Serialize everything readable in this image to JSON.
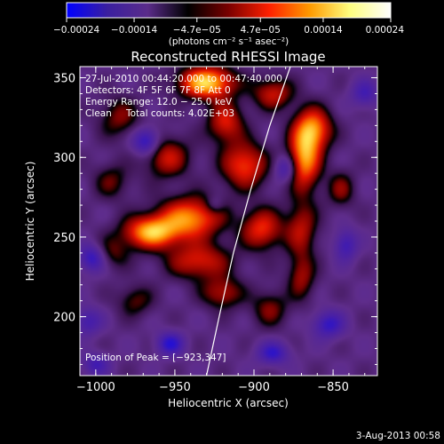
{
  "chart_data": {
    "type": "heatmap",
    "title": "Reconstructed RHESSI Image",
    "xlabel": "Heliocentric X (arcsec)",
    "ylabel": "Heliocentric Y (arcsec)",
    "xlim": [
      -1010,
      -822
    ],
    "ylim": [
      163,
      357
    ],
    "x_ticks": [
      -1000,
      -950,
      -900,
      -850
    ],
    "y_ticks": [
      200,
      250,
      300,
      350
    ],
    "x_tick_labels": [
      "−1000",
      "−950",
      "−900",
      "−850"
    ],
    "y_tick_labels": [
      "200",
      "250",
      "300",
      "350"
    ],
    "colorbar": {
      "range": [
        -0.00024,
        0.00024
      ],
      "ticks": [
        -0.00024,
        -0.00014,
        -4.7e-05,
        4.7e-05,
        0.00014,
        0.00024
      ],
      "tick_labels": [
        "−0.00024",
        "−0.00014",
        "−4.7e−05",
        "4.7e−05",
        "0.00014",
        "0.00024"
      ],
      "units": "(photons cm⁻² s⁻¹ asec⁻²)",
      "colors": [
        "#0000ff",
        "#3a1fa0",
        "#5a2c8a",
        "#000000",
        "#7a0000",
        "#ff2000",
        "#ff9a00",
        "#ffff80",
        "#ffffff"
      ]
    },
    "annotations": {
      "time_range": "27‑Jul‑2010 00:44:20.000 to 00:47:40.000",
      "detectors": "Detectors: 4F 5F 6F 7F 8F  Att 0",
      "energy_range": "Energy Range: 12.0 − 25.0 keV",
      "method": "Clean",
      "total_counts": "Total counts: 4.02E+03",
      "peak_position": "Position of Peak = [−923,347]"
    },
    "limb_curve": [
      [
        -930,
        163
      ],
      [
        -922,
        200
      ],
      [
        -913,
        240
      ],
      [
        -902,
        280
      ],
      [
        -890,
        320
      ],
      [
        -877,
        357
      ]
    ],
    "sources": [
      {
        "x": -930,
        "y": 347,
        "amp": 1.0,
        "sx": 12,
        "sy": 7
      },
      {
        "x": -965,
        "y": 253,
        "amp": 0.9,
        "sx": 12,
        "sy": 7
      },
      {
        "x": -940,
        "y": 262,
        "amp": 0.8,
        "sx": 14,
        "sy": 9
      },
      {
        "x": -868,
        "y": 300,
        "amp": 0.85,
        "sx": 7,
        "sy": 14
      },
      {
        "x": -862,
        "y": 318,
        "amp": 0.7,
        "sx": 8,
        "sy": 9
      },
      {
        "x": -906,
        "y": 295,
        "amp": 0.65,
        "sx": 10,
        "sy": 10
      },
      {
        "x": -955,
        "y": 300,
        "amp": 0.5,
        "sx": 10,
        "sy": 9
      },
      {
        "x": -918,
        "y": 322,
        "amp": 0.55,
        "sx": 8,
        "sy": 9
      },
      {
        "x": -888,
        "y": 340,
        "amp": 0.5,
        "sx": 9,
        "sy": 7
      },
      {
        "x": -935,
        "y": 235,
        "amp": 0.55,
        "sx": 14,
        "sy": 8
      },
      {
        "x": -895,
        "y": 255,
        "amp": 0.6,
        "sx": 9,
        "sy": 9
      },
      {
        "x": -870,
        "y": 255,
        "amp": 0.45,
        "sx": 7,
        "sy": 12
      },
      {
        "x": -870,
        "y": 225,
        "amp": 0.4,
        "sx": 6,
        "sy": 10
      },
      {
        "x": -890,
        "y": 205,
        "amp": 0.35,
        "sx": 8,
        "sy": 8
      },
      {
        "x": -920,
        "y": 215,
        "amp": 0.45,
        "sx": 9,
        "sy": 7
      },
      {
        "x": -985,
        "y": 325,
        "amp": 0.35,
        "sx": 9,
        "sy": 9
      },
      {
        "x": -990,
        "y": 285,
        "amp": 0.3,
        "sx": 8,
        "sy": 8
      },
      {
        "x": -975,
        "y": 210,
        "amp": 0.3,
        "sx": 8,
        "sy": 7
      },
      {
        "x": -990,
        "y": 240,
        "amp": 0.3,
        "sx": 8,
        "sy": 7
      },
      {
        "x": -845,
        "y": 280,
        "amp": 0.35,
        "sx": 6,
        "sy": 8
      },
      {
        "x": -968,
        "y": 310,
        "amp": -0.55,
        "sx": 6,
        "sy": 6
      },
      {
        "x": -1002,
        "y": 237,
        "amp": -0.5,
        "sx": 6,
        "sy": 6
      },
      {
        "x": -953,
        "y": 183,
        "amp": -0.5,
        "sx": 6,
        "sy": 5
      },
      {
        "x": -888,
        "y": 177,
        "amp": -0.45,
        "sx": 7,
        "sy": 5
      },
      {
        "x": -853,
        "y": 195,
        "amp": -0.45,
        "sx": 7,
        "sy": 6
      },
      {
        "x": -842,
        "y": 245,
        "amp": -0.4,
        "sx": 5,
        "sy": 7
      },
      {
        "x": -880,
        "y": 293,
        "amp": -0.4,
        "sx": 5,
        "sy": 6
      },
      {
        "x": -1005,
        "y": 197,
        "amp": -0.35,
        "sx": 6,
        "sy": 6
      },
      {
        "x": -925,
        "y": 270,
        "amp": -0.25,
        "sx": 4,
        "sy": 4
      },
      {
        "x": -1000,
        "y": 170,
        "amp": -0.35,
        "sx": 6,
        "sy": 5
      },
      {
        "x": -830,
        "y": 340,
        "amp": -0.35,
        "sx": 6,
        "sy": 6
      }
    ]
  },
  "footer": {
    "date": "3‑Aug‑2013 00:58"
  }
}
